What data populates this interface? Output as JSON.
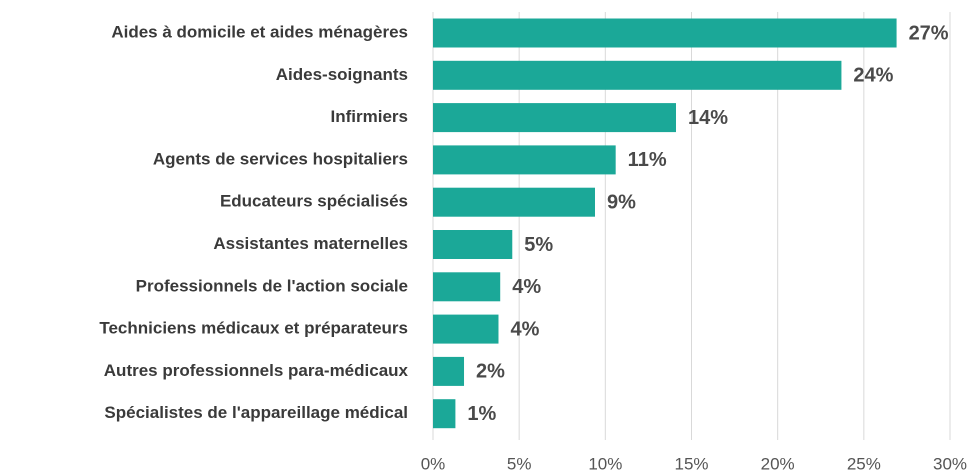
{
  "chart_data": {
    "type": "barh",
    "categories": [
      "Aides à domicile et aides ménagères",
      "Aides-soignants",
      "Infirmiers",
      "Agents de services hospitaliers",
      "Educateurs spécialisés",
      "Assistantes maternelles",
      "Professionnels de l'action sociale",
      "Techniciens médicaux et préparateurs",
      "Autres professionnels para-médicaux",
      "Spécialistes de l'appareillage médical"
    ],
    "values": [
      26.9,
      23.7,
      14.1,
      10.6,
      9.4,
      4.6,
      3.9,
      3.8,
      1.8,
      1.3
    ],
    "value_labels": [
      "27%",
      "24%",
      "14%",
      "11%",
      "9%",
      "5%",
      "4%",
      "4%",
      "2%",
      "1%"
    ],
    "color": "#1ba898",
    "xlim": [
      0,
      30
    ],
    "xticks": [
      {
        "value": 0,
        "label": "0%"
      },
      {
        "value": 5,
        "label": "5%"
      },
      {
        "value": 10,
        "label": "10%"
      },
      {
        "value": 15,
        "label": "15%"
      },
      {
        "value": 20,
        "label": "20%"
      },
      {
        "value": 25,
        "label": "25%"
      },
      {
        "value": 30,
        "label": "30%"
      }
    ],
    "grid": true
  }
}
